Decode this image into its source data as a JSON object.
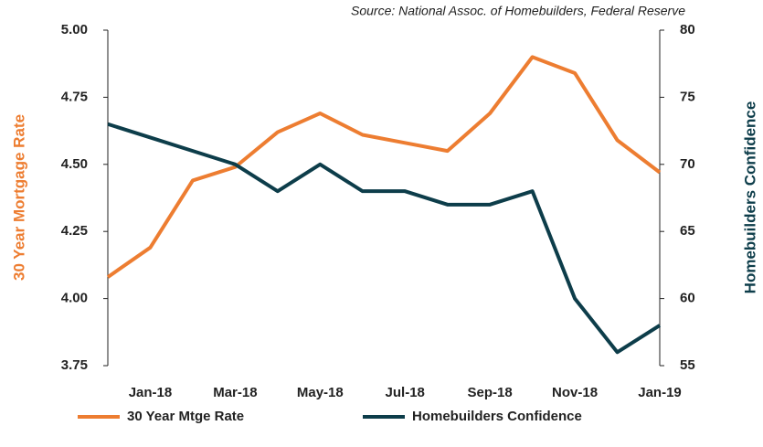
{
  "chart_data": {
    "type": "line",
    "source": "Source: National Assoc. of Homebuilders, Federal Reserve",
    "ylabel": "30 Year Mortgage Rate",
    "y2label": "Homebuilders Confidence",
    "categories": [
      null,
      "Jan-18",
      null,
      "Mar-18",
      null,
      "May-18",
      null,
      "Jul-18",
      null,
      "Sep-18",
      null,
      "Nov-18",
      null,
      "Jan-19"
    ],
    "series": [
      {
        "name": "30 Year Mtge Rate",
        "color": "#ED7D31",
        "values": [
          4.08,
          4.19,
          4.44,
          4.49,
          4.62,
          4.69,
          4.61,
          4.58,
          4.55,
          4.69,
          4.9,
          4.84,
          4.59,
          4.47
        ]
      },
      {
        "name": "Homebuilders Confidence",
        "color": "#0D3D4A",
        "axis": "y2",
        "values": [
          73,
          72,
          71,
          70,
          68,
          70,
          68,
          68,
          67,
          67,
          68,
          60,
          56,
          58
        ]
      }
    ],
    "ylim": [
      3.75,
      5.0
    ],
    "yticks": [
      3.75,
      {
        "value": 4,
        "label": "4.00"
      },
      4.25,
      {
        "value": 4.5,
        "label": "4.50"
      },
      4.75,
      {
        "value": 5,
        "label": "5.00"
      }
    ],
    "y2lim": [
      55,
      80
    ],
    "y2ticks": [
      55,
      60,
      65,
      70,
      75,
      80
    ],
    "legend": "bottom"
  }
}
